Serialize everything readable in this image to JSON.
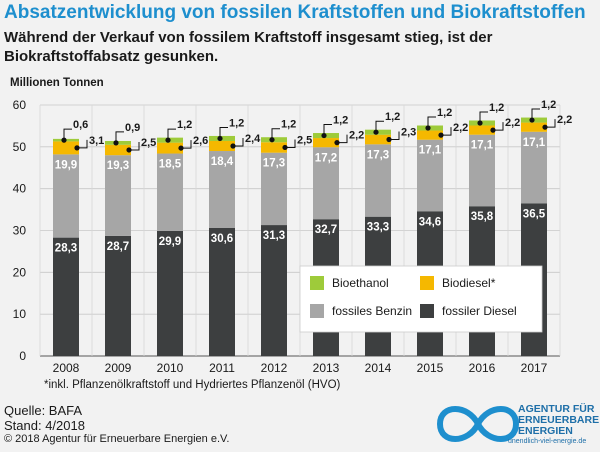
{
  "title": "Absatzentwicklung von fossilen Kraftstoffen und Biokraftstoffen",
  "subtitle": "Während der Verkauf von fossilem Kraftstoff insgesamt stieg, ist der Biokraftstoffabsatz gesunken.",
  "footnote": "*inkl. Pflanzenölkraftstoff und Hydriertes Pflanzenöl (HVO)",
  "source": "Quelle: BAFA",
  "stand": "Stand: 4/2018",
  "copyright": "© 2018 Agentur für Erneuerbare Energien e.V.",
  "logo": {
    "line1": "AGENTUR FÜR",
    "line2": "ERNEUERBARE",
    "line3": "ENERGIEN",
    "url": "unendlich-viel-energie.de"
  },
  "colors": {
    "fossiler_diesel": "#3d3f40",
    "fossiles_benzin": "#a6a6a6",
    "biodiesel": "#f5b800",
    "bioethanol": "#9ecb3a",
    "title": "#1e8fce"
  },
  "chart_data": {
    "type": "bar",
    "stacked": true,
    "ylabel": "Millionen Tonnen",
    "ylim": [
      0,
      60
    ],
    "yticks": [
      0,
      10,
      20,
      30,
      40,
      50,
      60
    ],
    "grid": true,
    "legend_position": "bottom-right",
    "categories": [
      "2008",
      "2009",
      "2010",
      "2011",
      "2012",
      "2013",
      "2014",
      "2015",
      "2016",
      "2017"
    ],
    "series": [
      {
        "name": "fossiler Diesel",
        "key": "fossiler_diesel",
        "values": [
          28.3,
          28.7,
          29.9,
          30.6,
          31.3,
          32.7,
          33.3,
          34.6,
          35.8,
          36.5
        ],
        "labels": [
          "28,3",
          "28,7",
          "29,9",
          "30,6",
          "31,3",
          "32,7",
          "33,3",
          "34,6",
          "35,8",
          "36,5"
        ]
      },
      {
        "name": "fossiles Benzin",
        "key": "fossiles_benzin",
        "values": [
          19.9,
          19.3,
          18.5,
          18.4,
          17.3,
          17.2,
          17.3,
          17.1,
          17.1,
          17.1
        ],
        "labels": [
          "19,9",
          "19,3",
          "18,5",
          "18,4",
          "17,3",
          "17,2",
          "17,3",
          "17,1",
          "17,1",
          "17,1"
        ]
      },
      {
        "name": "Biodiesel*",
        "key": "biodiesel",
        "values": [
          3.1,
          2.5,
          2.6,
          2.4,
          2.5,
          2.2,
          2.3,
          2.2,
          2.2,
          2.2
        ],
        "labels": [
          "3,1",
          "2,5",
          "2,6",
          "2,4",
          "2,5",
          "2,2",
          "2,3",
          "2,2",
          "2,2",
          "2,2"
        ]
      },
      {
        "name": "Bioethanol",
        "key": "bioethanol",
        "values": [
          0.6,
          0.9,
          1.2,
          1.2,
          1.2,
          1.2,
          1.2,
          1.2,
          1.2,
          1.2
        ],
        "labels": [
          "0,6",
          "0,9",
          "1,2",
          "1,2",
          "1,2",
          "1,2",
          "1,2",
          "1,2",
          "1,2",
          "1,2"
        ]
      }
    ],
    "legend": [
      {
        "name": "Bioethanol",
        "key": "bioethanol"
      },
      {
        "name": "Biodiesel*",
        "key": "biodiesel"
      },
      {
        "name": "fossiles Benzin",
        "key": "fossiles_benzin"
      },
      {
        "name": "fossiler Diesel",
        "key": "fossiler_diesel"
      }
    ]
  }
}
